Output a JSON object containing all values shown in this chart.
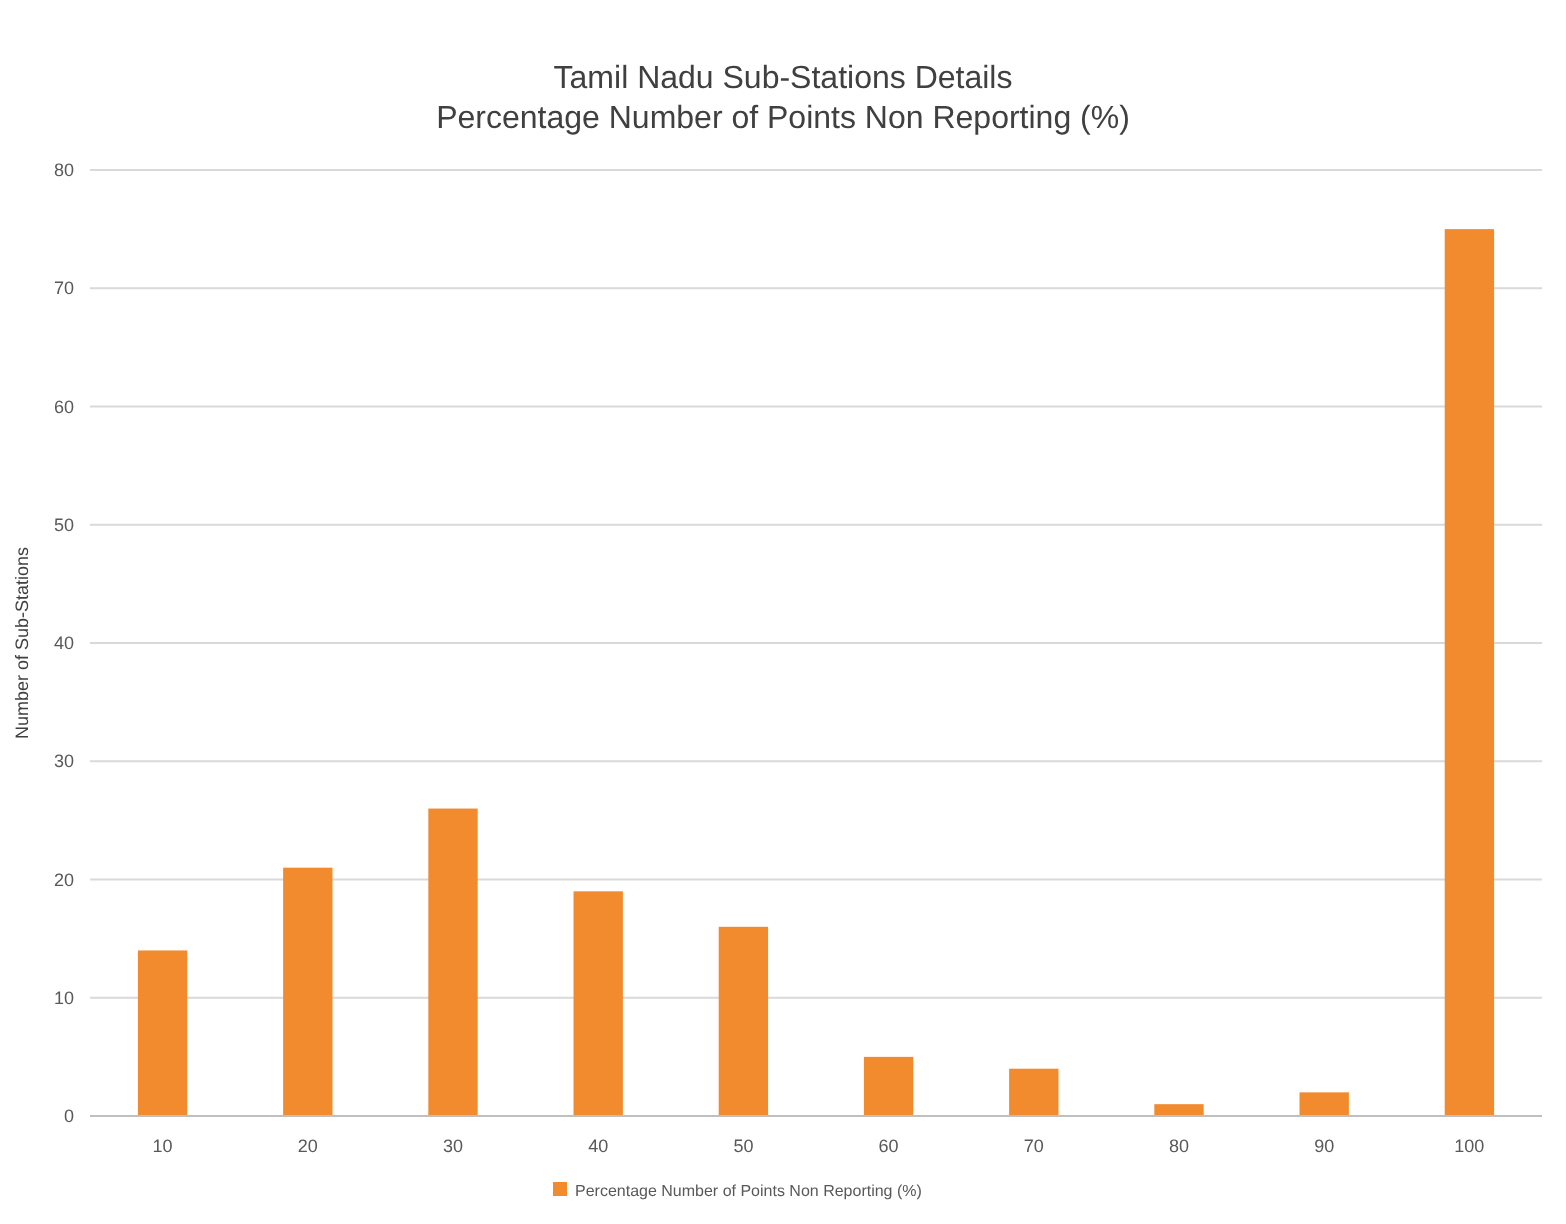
{
  "chart_data": {
    "type": "bar",
    "title": "Tamil Nadu Sub-Stations Details\nPercentage Number of Points Non Reporting (%)",
    "ylabel": "Number of Sub-Stations",
    "categories": [
      "10",
      "20",
      "30",
      "40",
      "50",
      "60",
      "70",
      "80",
      "90",
      "100"
    ],
    "series": [
      {
        "name": "Percentage Number of Points Non Reporting (%)",
        "color": "#f28a2e",
        "values": [
          14,
          21,
          26,
          19,
          16,
          5,
          4,
          1,
          2,
          75
        ]
      }
    ],
    "ylim": [
      0,
      80
    ],
    "yticks": [
      0,
      10,
      20,
      30,
      40,
      50,
      60,
      70,
      80
    ],
    "grid": "y",
    "legend": "bottom"
  }
}
